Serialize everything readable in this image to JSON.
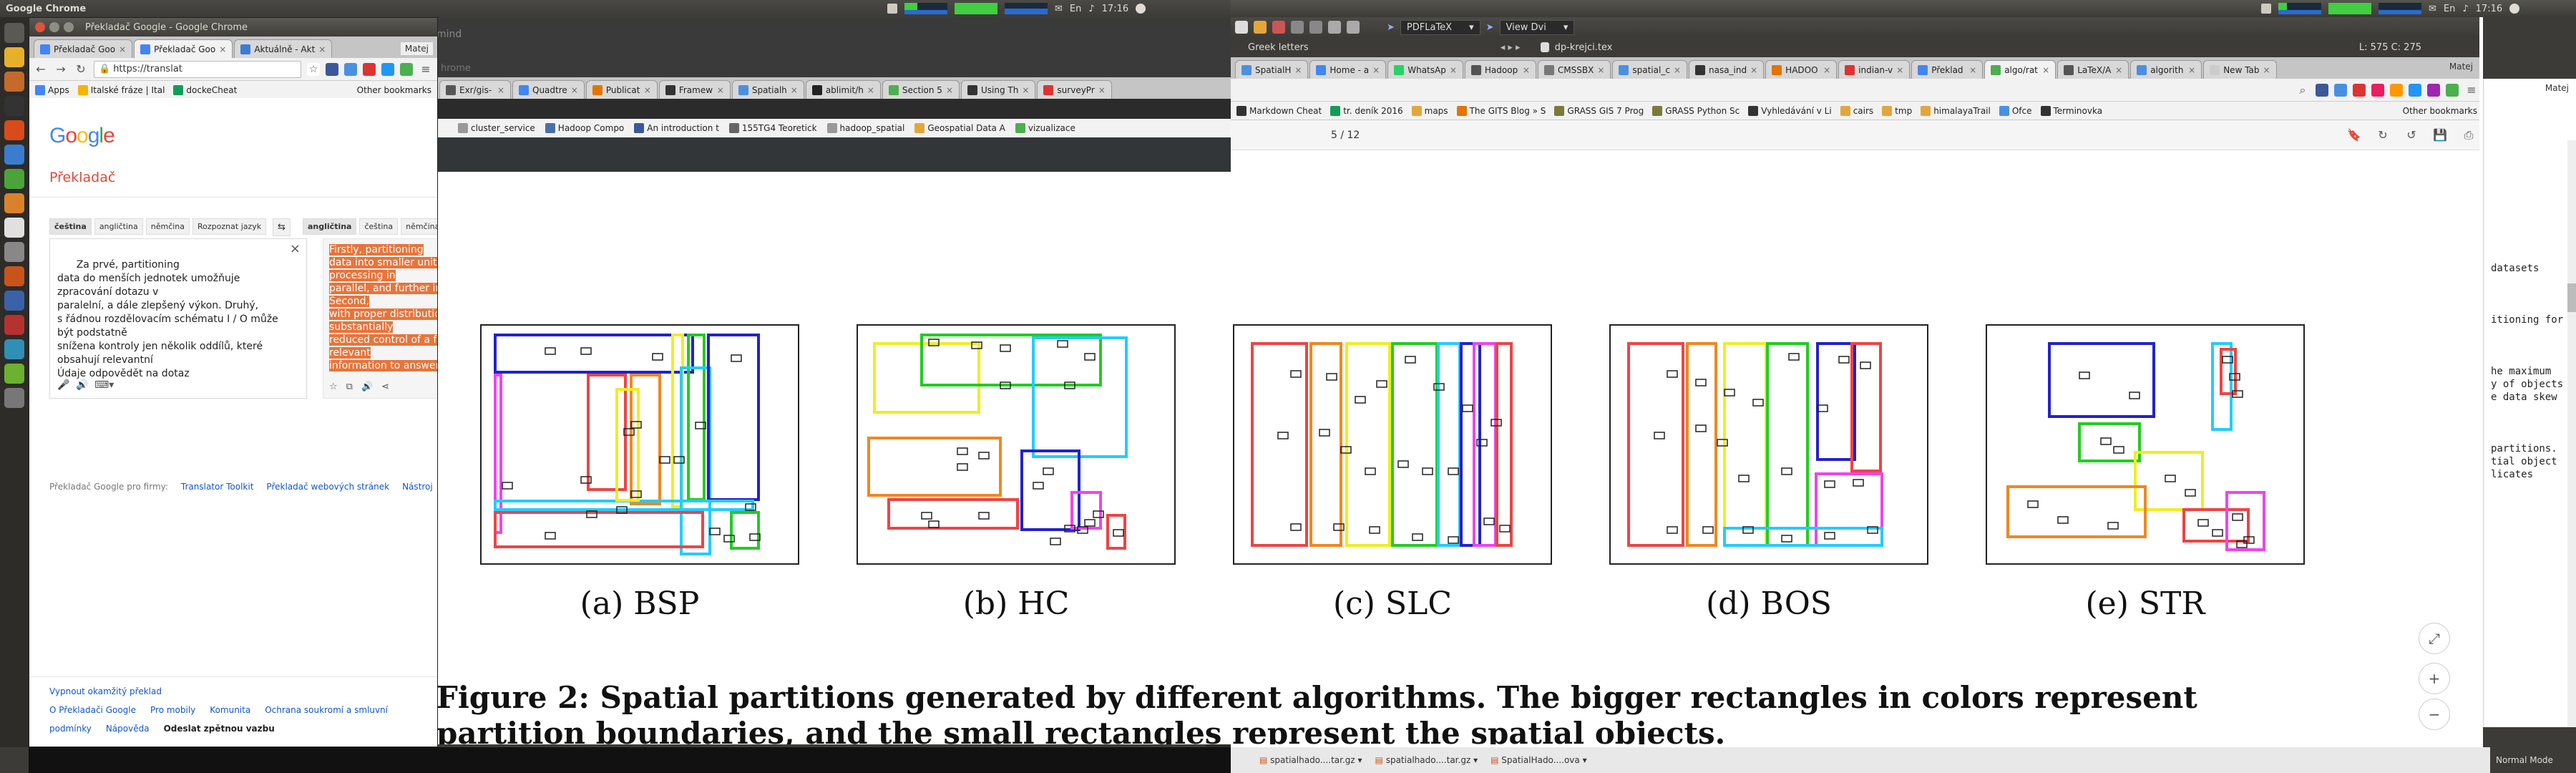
{
  "top_panel_left": {
    "app_title": "Google Chrome",
    "clock": "17:16",
    "sound": "♪",
    "mail": "✉",
    "kb": "En"
  },
  "top_panel_right": {
    "app_title": "",
    "clock": "17:16",
    "user": "Matej",
    "kb": "En"
  },
  "translate_window": {
    "title": "Překladač Google - Google Chrome",
    "user": "Matej",
    "tabs": [
      {
        "label": "Překladač Goo",
        "color": "#4285f4"
      },
      {
        "label": "Překladač Goo",
        "color": "#4285f4"
      },
      {
        "label": "Aktuálně - Akt",
        "color": "#3b7dd8"
      }
    ],
    "url": "https://translat",
    "bookmarks": [
      "Apps",
      "Italské fráze | Ital",
      "dockeCheat"
    ],
    "other_bookmarks": "Other bookmarks",
    "logo": "Google",
    "page_title": "Překladač",
    "src_langs": [
      "čeština",
      "angličtina",
      "němčina",
      "Rozpoznat jazyk"
    ],
    "swap_icon": "⇆",
    "dst_langs": [
      "angličtina",
      "čeština",
      "němčina"
    ],
    "source_text": "Za prvé, partitioning\ndata do menších jednotek umožňuje\nzpracování dotazu v\nparalelní, a dále zlepšený výkon. Druhý,\ns řádnou rozdělovacím schématu I / O může\nbýt podstatně\nsnížena kontroly jen několik oddílů, které\nobsahují relevantní\nÚdaje odpovědět na dotaz",
    "translated_lines": [
      "Firstly, partitioning",
      "data into smaller units all",
      "processing in",
      "parallel, and further impr",
      "Second,",
      "with proper distribution o",
      "substantially",
      "reduced control of a few",
      "relevant",
      "information to answer the"
    ],
    "for_firms_label": "Překladač Google pro firmy:",
    "for_firms_links": [
      "Translator Toolkit",
      "Překladač webových stránek",
      "Nástroj"
    ],
    "footer_top": "Vypnout okamžitý překlad",
    "footer_links": [
      "O Překladači Google",
      "Pro mobily",
      "Komunita",
      "Ochrana soukromí a smluvní"
    ],
    "footer_links2": [
      "podmínky",
      "Nápověda"
    ],
    "feedback": "Odeslat zpětnou vazbu"
  },
  "middle_window": {
    "bookmarks_partial": [
      "cluster_service",
      "Hadoop Compo",
      "An introduction t",
      "155TG4 Teoretick",
      "hadoop_spatial",
      "Geospatial Data A",
      "vizualizace"
    ],
    "tabs": [
      "Exr/gis-",
      "Quadtre",
      "Publicat",
      "Framew",
      "Spatialh",
      "ablimit/h",
      "Section 5",
      "Using Th",
      "surveyPr"
    ],
    "dim_text": "mind",
    "dim_text2": "hrome"
  },
  "texmaker": {
    "toolbar_select1": "PDFLaTeX",
    "toolbar_select2": "View Dvi",
    "toolbar2_label": "Greek letters",
    "file_label": "dp-krejci.tex",
    "cursor_pos": "L: 575 C: 275",
    "code_lines": [
      "datasets",
      "",
      "",
      "",
      "itioning for",
      "",
      "",
      "",
      "he maximum",
      "y of objects",
      "e data skew",
      "",
      "",
      "",
      "partitions.",
      "tial object",
      "licates"
    ],
    "status": "Normal Mode"
  },
  "right_chrome": {
    "tabs": [
      "SpatialH",
      "Home - a",
      "WhatsAp",
      "Hadoop",
      "CMSSBX",
      "spatial_c",
      "nasa_ind",
      "HADOO",
      "indian-v",
      "Překlad",
      "algo/rat",
      "LaTeX/A",
      "algorith",
      "New Tab"
    ],
    "user": "Matej",
    "bookmarks": [
      "Markdown Cheat",
      "tr. deník 2016",
      "maps",
      "The GITS Blog » S",
      "GRASS GIS 7 Prog",
      "GRASS Python Sc",
      "Vyhledávání v Li",
      "cairs",
      "tmp",
      "himalayaTrail",
      "Ofce",
      "Terminovka"
    ],
    "other_bookmarks": "Other bookmarks",
    "page_indicator": "5 / 12"
  },
  "figure": {
    "captions": [
      "(a) BSP",
      "(b) HC",
      "(c) SLC",
      "(d) BOS",
      "(e) STR"
    ],
    "figure_line1": "Figure 2:  Spatial partitions generated by different algorithms.  The bigger rectangles in colors represent",
    "figure_line2": "partition boundaries, and the small rectangles represent the spatial objects."
  },
  "taskbar": [
    "spatialhado....tar.gz",
    "spatialhado....tar.gz",
    "SpatialHado....ova"
  ]
}
